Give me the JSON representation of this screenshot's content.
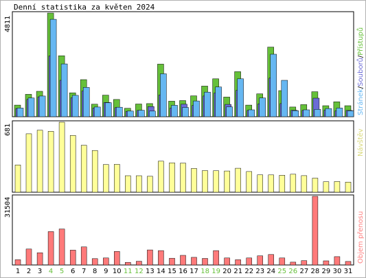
{
  "title": "Denní statistika za květen 2024",
  "colors": {
    "hits": "#66c03a",
    "files": "#6b6bd6",
    "pages": "#66b7f2",
    "visits": "#ffff99",
    "volume": "#ff7a7a",
    "weekend": "#66c03a",
    "weekday": "#000000",
    "legend_hits": "#66c03a",
    "legend_files": "#6b6bd6",
    "legend_pages": "#66b7f2",
    "legend_visits": "#d8d87a",
    "legend_volume": "#ff8080"
  },
  "chart_data": [
    {
      "type": "bar",
      "title": "Denní statistika za květen 2024",
      "categories": [
        "1",
        "2",
        "3",
        "4",
        "5",
        "6",
        "7",
        "8",
        "9",
        "10",
        "11",
        "12",
        "13",
        "14",
        "15",
        "16",
        "17",
        "18",
        "19",
        "20",
        "21",
        "22",
        "23",
        "24",
        "25",
        "26",
        "27",
        "28",
        "29",
        "30",
        "31"
      ],
      "weekend_days": [
        "4",
        "5",
        "11",
        "12",
        "18",
        "19",
        "25",
        "26"
      ],
      "ymax_label": "4811",
      "ylim": [
        0,
        4811
      ],
      "legend": [
        "Stránek",
        "Souborů",
        "Přístupů"
      ],
      "legend_separator": "/",
      "series": [
        {
          "name": "Přístupů",
          "values": [
            540,
            1040,
            1180,
            4811,
            2830,
            1110,
            1720,
            580,
            1000,
            800,
            390,
            590,
            610,
            2440,
            720,
            750,
            970,
            1420,
            1760,
            910,
            2090,
            540,
            1060,
            3230,
            1210,
            450,
            560,
            1160,
            510,
            690,
            510
          ]
        },
        {
          "name": "Souborů",
          "values": [
            380,
            800,
            920,
            2820,
            1690,
            880,
            1190,
            400,
            660,
            420,
            250,
            290,
            470,
            1010,
            400,
            580,
            520,
            960,
            1100,
            570,
            1220,
            290,
            600,
            1790,
            610,
            300,
            290,
            860,
            300,
            270,
            290
          ]
        },
        {
          "name": "Stránek",
          "values": [
            400,
            870,
            960,
            4520,
            2450,
            990,
            1360,
            450,
            650,
            440,
            260,
            300,
            260,
            1990,
            530,
            430,
            730,
            1140,
            1380,
            460,
            1760,
            320,
            870,
            2900,
            1690,
            280,
            320,
            340,
            380,
            400,
            270
          ]
        }
      ]
    },
    {
      "type": "bar",
      "categories": [
        "1",
        "2",
        "3",
        "4",
        "5",
        "6",
        "7",
        "8",
        "9",
        "10",
        "11",
        "12",
        "13",
        "14",
        "15",
        "16",
        "17",
        "18",
        "19",
        "20",
        "21",
        "22",
        "23",
        "24",
        "25",
        "26",
        "27",
        "28",
        "29",
        "30",
        "31"
      ],
      "ymax_label": "681",
      "ylim": [
        0,
        681
      ],
      "legend": [
        "Návštěv"
      ],
      "series": [
        {
          "name": "Návštěv",
          "values": [
            265,
            568,
            603,
            592,
            681,
            552,
            457,
            406,
            269,
            271,
            160,
            160,
            155,
            302,
            286,
            283,
            231,
            210,
            209,
            206,
            233,
            201,
            169,
            168,
            165,
            175,
            161,
            137,
            102,
            104,
            98
          ]
        }
      ]
    },
    {
      "type": "bar",
      "categories": [
        "1",
        "2",
        "3",
        "4",
        "5",
        "6",
        "7",
        "8",
        "9",
        "10",
        "11",
        "12",
        "13",
        "14",
        "15",
        "16",
        "17",
        "18",
        "19",
        "20",
        "21",
        "22",
        "23",
        "24",
        "25",
        "26",
        "27",
        "28",
        "29",
        "30",
        "31"
      ],
      "ymax_label": "31504",
      "ylim": [
        0,
        31504
      ],
      "legend": [
        "Objem přenosu"
      ],
      "series": [
        {
          "name": "Objem přenosu",
          "values": [
            2400,
            7300,
            5600,
            15300,
            16500,
            6800,
            8300,
            2900,
            3200,
            6200,
            1200,
            1700,
            6900,
            6600,
            3100,
            4400,
            3500,
            3000,
            6600,
            3200,
            2400,
            3200,
            4200,
            4800,
            3200,
            1300,
            2000,
            31504,
            1900,
            3800,
            1600
          ]
        }
      ]
    }
  ]
}
